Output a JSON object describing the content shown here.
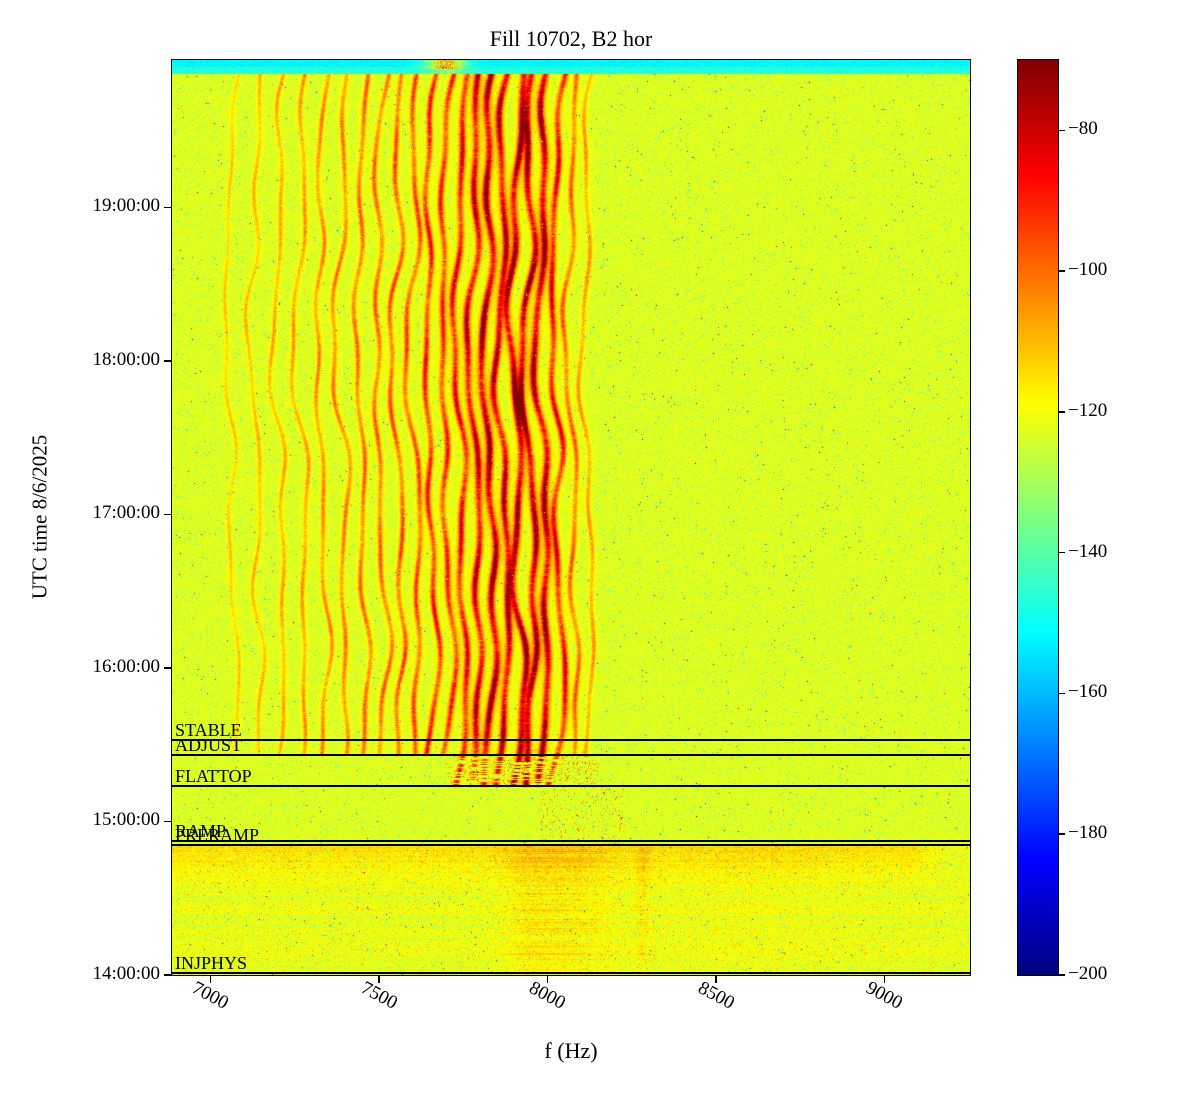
{
  "figure": {
    "title": "Fill 10702, B2 hor",
    "xlabel": "f (Hz)",
    "ylabel": "UTC time 8/6/2025"
  },
  "chart_data": {
    "type": "heatmap",
    "title": "Fill 10702, B2 hor",
    "xlabel": "f (Hz)",
    "ylabel": "UTC time 8/6/2025",
    "date": "8/6/2025",
    "x_range": [
      6887,
      9255
    ],
    "x_ticks": [
      7000,
      7500,
      8000,
      8500,
      9000
    ],
    "y_start": "14:00:00",
    "y_span_hours": 5.96,
    "y_ticks": [
      "14:00:00",
      "15:00:00",
      "16:00:00",
      "17:00:00",
      "18:00:00",
      "19:00:00"
    ],
    "colorbar": {
      "colormap": "jet",
      "vmin": -200,
      "vmax": -70,
      "ticks": [
        -80,
        -100,
        -120,
        -140,
        -160,
        -180,
        -200
      ],
      "tick_labels": [
        "−80",
        "−100",
        "−120",
        "−140",
        "−160",
        "−180",
        "−200"
      ]
    },
    "background_level_db": -123,
    "top_band": {
      "level_db": -149,
      "note": "cyan horizontal band across the full width at the very top (latest times)"
    },
    "beam_modes": [
      {
        "label": "INJPHYS",
        "hours_from_start": 0.0
      },
      {
        "label": "PRERAMP",
        "hours_from_start": 0.846
      },
      {
        "label": "RAMP",
        "hours_from_start": 0.875
      },
      {
        "label": "FLATTOP",
        "hours_from_start": 1.231
      },
      {
        "label": "ADJUST",
        "hours_from_start": 1.435
      },
      {
        "label": "STABLE",
        "hours_from_start": 1.531
      }
    ],
    "stripes": {
      "note": "wavy vertical spectral lines present above the ADJUST line; strongest (dark red, about -75 dB) between ~7740 and ~8030 Hz; faint warm vertical smears near 7950-8300 Hz below RAMP",
      "freqs_hz": [
        7060,
        7135,
        7205,
        7270,
        7330,
        7390,
        7448,
        7503,
        7555,
        7605,
        7652,
        7698,
        7742,
        7785,
        7827,
        7868,
        7908,
        7947,
        7986,
        8028,
        8072,
        8118
      ],
      "weights": [
        0.22,
        0.27,
        0.3,
        0.33,
        0.36,
        0.4,
        0.44,
        0.47,
        0.5,
        0.55,
        0.63,
        0.7,
        0.8,
        0.9,
        1.0,
        0.92,
        0.97,
        0.94,
        1.0,
        0.75,
        0.52,
        0.35
      ]
    }
  }
}
